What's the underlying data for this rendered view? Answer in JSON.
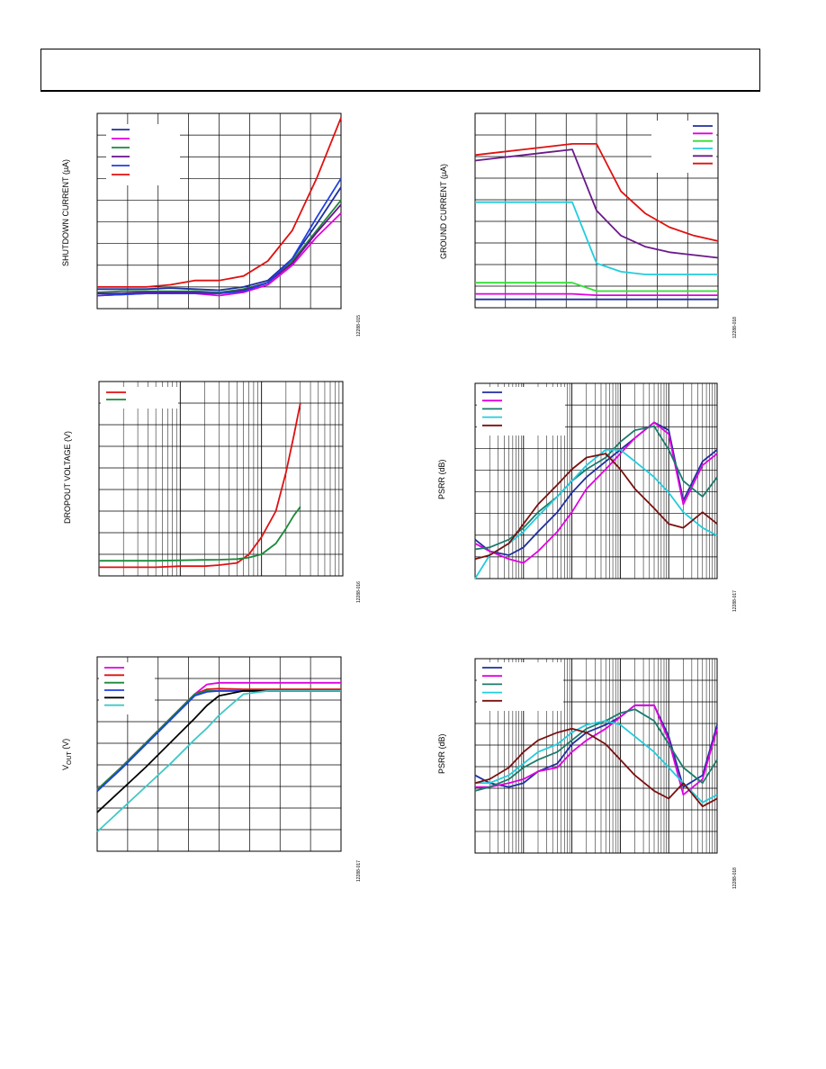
{
  "page": {
    "header_text": ""
  },
  "charts": [
    {
      "id": "shutdown",
      "ylabel": "SHUTDOWN CURRENT (µA)",
      "fig_id": "12288-015",
      "legend_count": 6
    },
    {
      "id": "ground",
      "ylabel": "GROUND CURRENT (µA)",
      "fig_id": "12288-018",
      "legend_count": 6
    },
    {
      "id": "dropout",
      "ylabel": "DROPOUT VOLTAGE (V)",
      "fig_id": "12288-016",
      "legend_count": 2
    },
    {
      "id": "psrr1",
      "ylabel": "PSRR (dB)",
      "fig_id": "12288-017",
      "legend_count": 5
    },
    {
      "id": "vout",
      "ylabel": "VOUT (V)",
      "ylabel_main": "V",
      "ylabel_sub": "OUT",
      "ylabel_unit": " (V)",
      "fig_id": "12288-017",
      "legend_count": 6
    },
    {
      "id": "psrr2",
      "ylabel": "PSRR (dB)",
      "fig_id": "12288-018",
      "legend_count": 5
    }
  ],
  "chart_data": [
    {
      "type": "line",
      "title": "",
      "ylabel": "SHUTDOWN CURRENT (µA)",
      "xlabel": "",
      "grid": true,
      "legend": "top-left",
      "x": [
        0,
        1,
        2,
        3,
        4,
        5,
        6,
        7,
        8,
        9,
        10
      ],
      "series": [
        {
          "color": "#1f2f9e",
          "values": [
            0.9,
            0.9,
            0.9,
            0.95,
            0.9,
            0.85,
            1.0,
            1.3,
            2.3,
            3.9,
            5.6
          ]
        },
        {
          "color": "#e000e0",
          "values": [
            0.6,
            0.65,
            0.7,
            0.7,
            0.7,
            0.6,
            0.75,
            1.1,
            2.0,
            3.3,
            4.4
          ]
        },
        {
          "color": "#1a8a3a",
          "values": [
            0.75,
            0.8,
            0.8,
            0.8,
            0.8,
            0.75,
            0.9,
            1.2,
            2.2,
            3.6,
            5.0
          ]
        },
        {
          "color": "#6a0f8e",
          "values": [
            0.7,
            0.7,
            0.75,
            0.75,
            0.75,
            0.7,
            0.85,
            1.2,
            2.1,
            3.5,
            4.8
          ]
        },
        {
          "color": "#1f3fe0",
          "values": [
            0.6,
            0.65,
            0.7,
            0.7,
            0.7,
            0.7,
            0.8,
            1.2,
            2.3,
            4.2,
            6.0
          ]
        },
        {
          "color": "#e01010",
          "values": [
            1.0,
            1.0,
            1.0,
            1.1,
            1.3,
            1.3,
            1.5,
            2.2,
            3.6,
            6.0,
            8.8
          ]
        }
      ],
      "xlim": [
        0,
        10
      ],
      "ylim": [
        0,
        9
      ]
    },
    {
      "type": "line",
      "title": "",
      "ylabel": "GROUND CURRENT (µA)",
      "xlabel": "",
      "grid": true,
      "legend": "top-right",
      "x": [
        0,
        1,
        2,
        3,
        4,
        5,
        6,
        7,
        8,
        9,
        10
      ],
      "series": [
        {
          "color": "#1f2f9e",
          "values": [
            0.3,
            0.3,
            0.3,
            0.3,
            0.3,
            0.3,
            0.3,
            0.3,
            0.3,
            0.3,
            0.3
          ]
        },
        {
          "color": "#e000e0",
          "values": [
            0.5,
            0.5,
            0.5,
            0.5,
            0.5,
            0.45,
            0.45,
            0.45,
            0.45,
            0.45,
            0.45
          ]
        },
        {
          "color": "#33dd33",
          "values": [
            0.9,
            0.9,
            0.9,
            0.9,
            0.9,
            0.6,
            0.6,
            0.6,
            0.6,
            0.6,
            0.6
          ]
        },
        {
          "color": "#22ccdd",
          "values": [
            3.8,
            3.8,
            3.8,
            3.8,
            3.8,
            1.6,
            1.3,
            1.2,
            1.2,
            1.2,
            1.2
          ]
        },
        {
          "color": "#6a1a8a",
          "values": [
            5.3,
            5.4,
            5.5,
            5.6,
            5.7,
            3.5,
            2.6,
            2.2,
            2.0,
            1.9,
            1.8
          ]
        },
        {
          "color": "#e01010",
          "values": [
            5.5,
            5.6,
            5.7,
            5.8,
            5.9,
            5.9,
            4.2,
            3.4,
            2.9,
            2.6,
            2.4
          ]
        }
      ],
      "xlim": [
        0,
        10
      ],
      "ylim": [
        0,
        7
      ]
    },
    {
      "type": "line",
      "title": "",
      "ylabel": "DROPOUT VOLTAGE (V)",
      "xlabel": "",
      "grid": true,
      "legend": "top-left",
      "x_log": true,
      "x": [
        0.1,
        0.2,
        0.5,
        1,
        2,
        3,
        5,
        7,
        10,
        15,
        20,
        25,
        30
      ],
      "series": [
        {
          "color": "#e01010",
          "values": [
            0.04,
            0.04,
            0.04,
            0.045,
            0.045,
            0.05,
            0.06,
            0.1,
            0.18,
            0.3,
            0.48,
            0.65,
            0.8
          ]
        },
        {
          "color": "#1a8a3a",
          "values": [
            0.07,
            0.07,
            0.07,
            0.072,
            0.074,
            0.075,
            0.078,
            0.085,
            0.1,
            0.15,
            0.22,
            0.28,
            0.32
          ]
        }
      ],
      "xlim": [
        0.1,
        100
      ],
      "ylim": [
        0,
        0.9
      ]
    },
    {
      "type": "line",
      "title": "",
      "ylabel": "PSRR (dB)",
      "xlabel": "",
      "grid": true,
      "legend": "top-left",
      "x_log": true,
      "x": [
        10,
        20,
        50,
        100,
        200,
        500,
        1000,
        2000,
        5000,
        10000,
        20000,
        50000,
        100000,
        200000,
        500000,
        1000000
      ],
      "series": [
        {
          "color": "#1f2f9e",
          "values": [
            20,
            14,
            12,
            16,
            24,
            34,
            44,
            52,
            60,
            66,
            72,
            80,
            76,
            40,
            60,
            66
          ]
        },
        {
          "color": "#e000e0",
          "values": [
            18,
            14,
            10,
            8,
            14,
            24,
            34,
            46,
            56,
            64,
            72,
            80,
            74,
            38,
            58,
            64
          ]
        },
        {
          "color": "#1a7a6a",
          "values": [
            15,
            16,
            20,
            26,
            34,
            42,
            50,
            56,
            62,
            70,
            76,
            78,
            66,
            50,
            42,
            52
          ]
        },
        {
          "color": "#22ccdd",
          "values": [
            0,
            12,
            18,
            24,
            32,
            42,
            50,
            58,
            66,
            66,
            60,
            52,
            44,
            34,
            26,
            22
          ]
        },
        {
          "color": "#7a1010",
          "values": [
            10,
            12,
            18,
            28,
            38,
            48,
            56,
            62,
            64,
            56,
            46,
            36,
            28,
            26,
            34,
            28
          ]
        }
      ],
      "xlim": [
        10,
        1000000
      ],
      "ylim": [
        0,
        100
      ]
    },
    {
      "type": "line",
      "title": "",
      "ylabel": "VOUT (V)",
      "xlabel": "",
      "grid": true,
      "legend": "top-left",
      "x": [
        0,
        1,
        2,
        3,
        4,
        4.5,
        5,
        6,
        7,
        8,
        9,
        10
      ],
      "series": [
        {
          "color": "#e000e0",
          "values": [
            1.9,
            2.6,
            3.35,
            4.1,
            4.85,
            5.15,
            5.2,
            5.2,
            5.2,
            5.2,
            5.2,
            5.2
          ]
        },
        {
          "color": "#e01010",
          "values": [
            1.9,
            2.6,
            3.35,
            4.1,
            4.85,
            5.0,
            5.02,
            5.0,
            5.0,
            5.0,
            5.0,
            5.0
          ]
        },
        {
          "color": "#1a8a3a",
          "values": [
            1.9,
            2.6,
            3.35,
            4.1,
            4.85,
            4.95,
            4.95,
            4.95,
            4.95,
            4.95,
            4.95,
            4.95
          ]
        },
        {
          "color": "#1f3fe0",
          "values": [
            1.85,
            2.55,
            3.3,
            4.05,
            4.8,
            4.92,
            4.95,
            4.95,
            4.95,
            4.95,
            4.95,
            4.95
          ]
        },
        {
          "color": "#000000",
          "values": [
            1.2,
            1.9,
            2.6,
            3.35,
            4.1,
            4.5,
            4.8,
            4.95,
            4.95,
            4.95,
            4.95,
            4.95
          ]
        },
        {
          "color": "#40c8c8",
          "values": [
            0.6,
            1.3,
            2.0,
            2.7,
            3.45,
            3.8,
            4.2,
            4.85,
            4.95,
            4.95,
            4.95,
            4.95
          ]
        }
      ],
      "xlim": [
        0,
        10
      ],
      "ylim": [
        0,
        6
      ]
    },
    {
      "type": "line",
      "title": "",
      "ylabel": "PSRR (dB)",
      "xlabel": "",
      "grid": true,
      "legend": "top-left",
      "x_log": true,
      "x": [
        10,
        20,
        50,
        100,
        200,
        500,
        1000,
        2000,
        5000,
        10000,
        20000,
        50000,
        100000,
        200000,
        500000,
        1000000
      ],
      "series": [
        {
          "color": "#1f2f9e",
          "values": [
            40,
            36,
            34,
            36,
            42,
            46,
            56,
            62,
            66,
            70,
            76,
            76,
            60,
            34,
            40,
            66
          ]
        },
        {
          "color": "#e000e0",
          "values": [
            34,
            34,
            36,
            38,
            42,
            44,
            52,
            58,
            64,
            70,
            76,
            76,
            58,
            30,
            38,
            64
          ]
        },
        {
          "color": "#1a7a6a",
          "values": [
            32,
            34,
            38,
            44,
            48,
            52,
            58,
            64,
            68,
            72,
            74,
            68,
            56,
            44,
            36,
            48
          ]
        },
        {
          "color": "#22ccdd",
          "values": [
            36,
            36,
            40,
            46,
            52,
            56,
            62,
            66,
            68,
            66,
            60,
            52,
            44,
            36,
            26,
            30
          ]
        },
        {
          "color": "#7a1010",
          "values": [
            36,
            38,
            44,
            52,
            58,
            62,
            64,
            62,
            56,
            48,
            40,
            32,
            28,
            36,
            24,
            28
          ]
        }
      ],
      "xlim": [
        10,
        1000000
      ],
      "ylim": [
        0,
        100
      ]
    }
  ]
}
